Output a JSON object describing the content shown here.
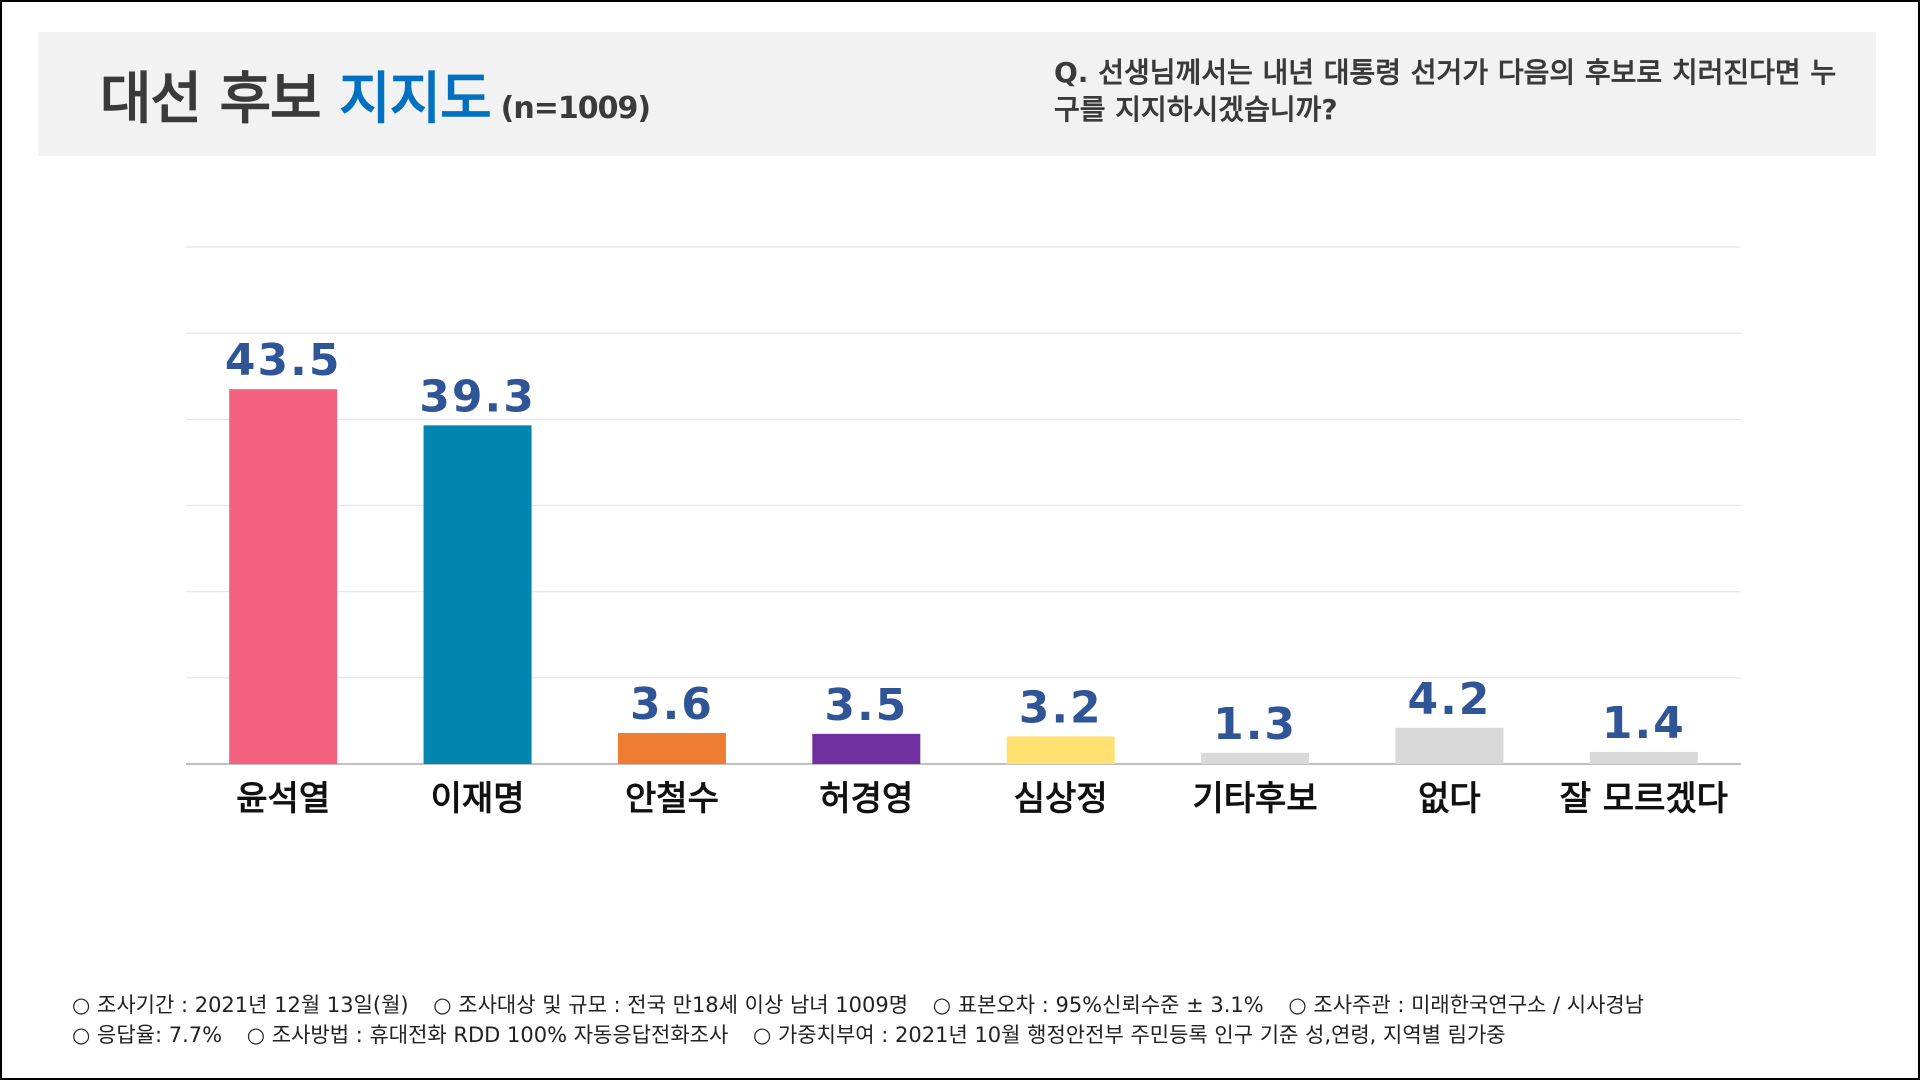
{
  "header": {
    "title_main": "대선 후보",
    "title_highlight": "지지도",
    "sample_size": "(n=1009)",
    "question": "Q. 선생님께서는 내년 대통령 선거가 다음의 후보로 치러진다면 누구를 지지하시겠습니까?"
  },
  "chart_data": {
    "type": "bar",
    "title": "대선 후보 지지도",
    "categories": [
      "윤석열",
      "이재명",
      "안철수",
      "허경영",
      "심상정",
      "기타후보",
      "없다",
      "잘 모르겠다"
    ],
    "values": [
      43.5,
      39.3,
      3.6,
      3.5,
      3.2,
      1.3,
      4.2,
      1.4
    ],
    "colors": [
      "#f4617f",
      "#0086b0",
      "#ef7d31",
      "#7030a0",
      "#ffe071",
      "#d9d9d9",
      "#d9d9d9",
      "#d9d9d9"
    ],
    "value_label_color": "#2f5597",
    "ylim": [
      0,
      60
    ],
    "grid_step": 10,
    "grid": true,
    "xlabel": "",
    "ylabel": ""
  },
  "footer": {
    "line1": [
      "○ 조사기간 : 2021년 12월 13일(월)",
      "○ 조사대상 및 규모 : 전국 만18세 이상 남녀 1009명",
      "○ 표본오차 : 95%신뢰수준 ± 3.1%",
      "○ 조사주관 : 미래한국연구소 / 시사경남"
    ],
    "line2": [
      "○ 응답율: 7.7%",
      "○ 조사방법 : 휴대전화 RDD 100% 자동응답전화조사",
      "○ 가중치부여 : 2021년 10월 행정안전부 주민등록 인구 기준 성,연령, 지역별 림가중"
    ]
  }
}
